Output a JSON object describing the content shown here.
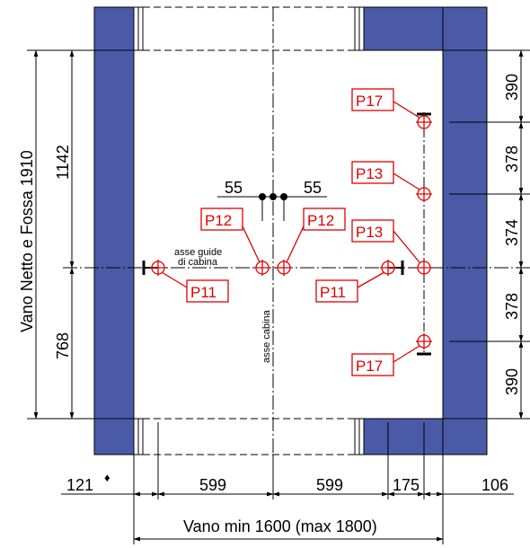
{
  "colors": {
    "wall": "#4a5aa6",
    "marker": "#e00000",
    "line": "#000000"
  },
  "dims": {
    "left_total": "Vano Netto e Fossa 1910",
    "left_top": "1142",
    "left_bottom": "768",
    "right_1": "390",
    "right_2": "378",
    "right_3": "374",
    "right_4": "378",
    "right_5": "390",
    "rail_left": "55",
    "rail_right": "55",
    "bottom_121": "121",
    "bottom_599a": "599",
    "bottom_599b": "599",
    "bottom_175": "175",
    "bottom_106": "106",
    "bottom_total": "Vano min 1600 (max 1800)",
    "diamond": "♦"
  },
  "labels": {
    "guide_axis_1": "asse guide",
    "guide_axis_2": "di cabina",
    "cabin_axis": "asse cabina"
  },
  "points": {
    "p17_top": "P17",
    "p13_top": "P13",
    "p12_left": "P12",
    "p12_right": "P12",
    "p13_mid": "P13",
    "p11_left": "P11",
    "p11_right": "P11",
    "p17_bottom": "P17"
  }
}
